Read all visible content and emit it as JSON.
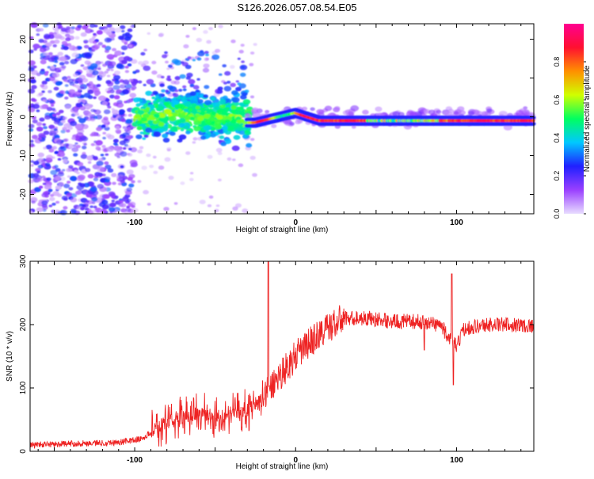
{
  "title": "S126.2026.057.08.54.E05",
  "colors": {
    "snr_line": "#ee2222",
    "axis": "#000000",
    "background": "#ffffff"
  },
  "chart_data": [
    {
      "type": "heatmap",
      "name": "spectrogram",
      "xlabel": "Height of straight line (km)",
      "ylabel": "Frequency (Hz)",
      "xlim": [
        -165,
        148
      ],
      "ylim": [
        -25,
        24
      ],
      "x_ticks": [
        -100,
        0,
        100
      ],
      "x_tick_labels": [
        "-100",
        "0",
        "100"
      ],
      "y_ticks": [
        20,
        10,
        0,
        -10,
        -20
      ],
      "y_tick_labels": [
        "20",
        "10",
        "0",
        "-10",
        "-20"
      ],
      "colorbar": {
        "label": "Normalized spectral amplitude",
        "range": [
          0,
          1
        ],
        "ticks": [
          0.0,
          0.2,
          0.4,
          0.6,
          0.8
        ],
        "tick_labels": [
          "0.0",
          "0.2",
          "0.4",
          "0.6",
          "0.8"
        ],
        "colors": [
          "#e8dcff",
          "#9a40ff",
          "#2020ff",
          "#00c8ff",
          "#00ff60",
          "#d0ff00",
          "#ff9000",
          "#ff1030",
          "#ff0090"
        ]
      },
      "description_regions": [
        {
          "x_range": [
            -165,
            -100
          ],
          "freq_range": [
            -25,
            24
          ],
          "amplitude": "0.0-0.3"
        },
        {
          "x_range": [
            -100,
            -30
          ],
          "freq_range": [
            -8,
            12
          ],
          "amplitude": "0.2-0.5"
        },
        {
          "x_range": [
            -30,
            148
          ],
          "freq_center": 0,
          "amplitude": "0.4-1.0"
        }
      ]
    },
    {
      "type": "line",
      "name": "snr",
      "xlabel": "Height of straight line (km)",
      "ylabel": "SNR (10 * v/v)",
      "xlim": [
        -165,
        148
      ],
      "ylim": [
        0,
        300
      ],
      "x_ticks": [
        -100,
        0,
        100
      ],
      "x_tick_labels": [
        "-100",
        "0",
        "100"
      ],
      "y_ticks": [
        0,
        100,
        200,
        300
      ],
      "y_tick_labels": [
        "0",
        "100",
        "200",
        "300"
      ],
      "series": [
        {
          "name": "SNR",
          "x": [
            -165,
            -140,
            -110,
            -95,
            -85,
            -75,
            -60,
            -50,
            -40,
            -30,
            -20,
            -10,
            0,
            10,
            20,
            30,
            45,
            60,
            75,
            90,
            95,
            100,
            105,
            120,
            135,
            148
          ],
          "y": [
            10,
            12,
            14,
            20,
            40,
            50,
            60,
            55,
            60,
            65,
            85,
            120,
            150,
            175,
            195,
            210,
            210,
            205,
            205,
            200,
            180,
            165,
            195,
            200,
            200,
            198
          ],
          "spikes": [
            {
              "x": -17,
              "y": 300
            },
            {
              "x": 97,
              "y": 280
            },
            {
              "x": 98,
              "y": 105
            },
            {
              "x": 80,
              "y": 160
            }
          ]
        }
      ]
    }
  ]
}
